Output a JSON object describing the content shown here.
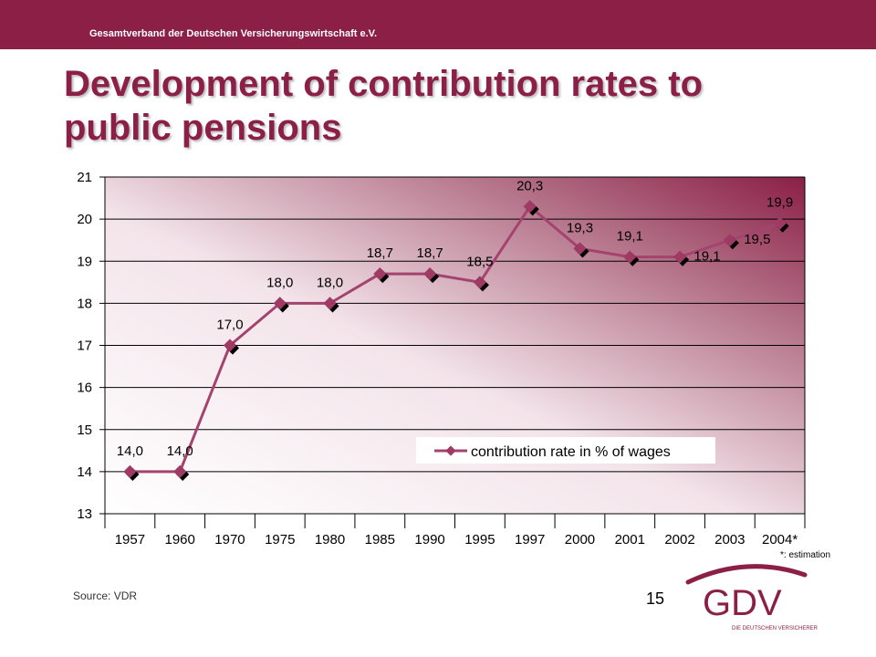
{
  "header": {
    "organization": "Gesamtverband der Deutschen Versicherungswirtschaft e.V."
  },
  "slide": {
    "title": "Development of contribution rates to public pensions",
    "footnote": "*: estimation",
    "source": "Source: VDR",
    "page_number": "15"
  },
  "logo": {
    "text": "GDV",
    "tagline": "DIE DEUTSCHEN VERSICHERER"
  },
  "colors": {
    "brand": "#8b1f45",
    "series": "#a3436e",
    "marker": "#9e3a64",
    "shadow": "#000000"
  },
  "chart_data": {
    "type": "line",
    "categories": [
      "1957",
      "1960",
      "1970",
      "1975",
      "1980",
      "1985",
      "1990",
      "1995",
      "1997",
      "2000",
      "2001",
      "2002",
      "2003",
      "2004*"
    ],
    "series": [
      {
        "name": "contribution rate in % of wages",
        "values": [
          14.0,
          14.0,
          17.0,
          18.0,
          18.0,
          18.7,
          18.7,
          18.5,
          20.3,
          19.3,
          19.1,
          19.1,
          19.5,
          19.9
        ],
        "labels": [
          "14,0",
          "14,0",
          "17,0",
          "18,0",
          "18,0",
          "18,7",
          "18,7",
          "18,5",
          "20,3",
          "19,3",
          "19,1",
          "19,1",
          "19,5",
          "19,9"
        ]
      }
    ],
    "yticks": [
      "13",
      "14",
      "15",
      "16",
      "17",
      "18",
      "19",
      "20",
      "21"
    ],
    "ylim": [
      13,
      21
    ],
    "grid": true,
    "legend": "inside-bottom-right"
  }
}
